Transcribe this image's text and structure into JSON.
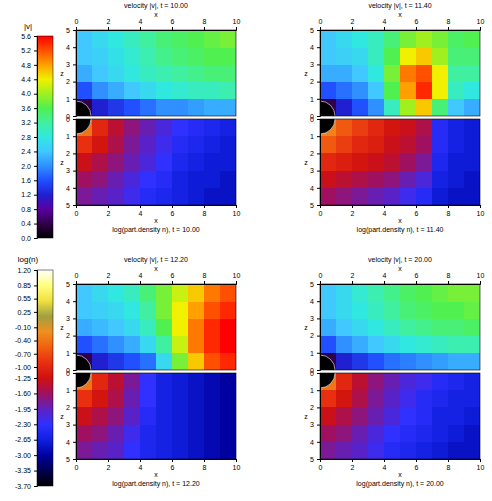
{
  "chart_data": [
    {
      "type": "heatmap",
      "xlabel": "x",
      "ylabel": "z",
      "xlim": [
        0,
        10
      ],
      "ylim": [
        0,
        5
      ],
      "xticks": [
        0,
        2,
        4,
        6,
        8,
        10
      ],
      "yticks": [
        0,
        1,
        2,
        3,
        4,
        5
      ],
      "x_edges": [
        0,
        1,
        2,
        3,
        4,
        5,
        6,
        7,
        8,
        9,
        10
      ],
      "z_edges": [
        0,
        1,
        2,
        3,
        4,
        5
      ],
      "colorbar": {
        "title": "|v|",
        "lim": [
          0,
          5.6
        ],
        "ticks": [
          {
            "value": 0,
            "label": "0.0"
          },
          0.4,
          0.8,
          1.2,
          1.6,
          {
            "value": 2,
            "label": "2.0"
          },
          2.4,
          2.8,
          3.2,
          3.6,
          {
            "value": 4,
            "label": "4.0"
          },
          4.4,
          4.8,
          5.2,
          5.6
        ]
      },
      "panels": [
        {
          "title": "velocity |v|, t = 10.00",
          "cells": [
            [
              0.4,
              1.2,
              1.4,
              1.6,
              1.8,
              2.0,
              2.0,
              2.1,
              2.2,
              2.2
            ],
            [
              1.6,
              2.0,
              2.2,
              2.4,
              2.6,
              2.8,
              2.9,
              3.0,
              3.0,
              3.1
            ],
            [
              2.2,
              2.4,
              2.6,
              2.8,
              3.0,
              3.1,
              3.2,
              3.3,
              3.4,
              3.4
            ],
            [
              2.4,
              2.5,
              2.7,
              2.9,
              3.1,
              3.3,
              3.4,
              3.5,
              3.6,
              3.6
            ],
            [
              2.4,
              2.6,
              2.8,
              3.0,
              3.2,
              3.4,
              3.5,
              3.6,
              3.7,
              3.8
            ]
          ]
        },
        {
          "title": "velocity |v|, t = 11.40",
          "cells": [
            [
              0.4,
              1.2,
              1.6,
              2.0,
              3.0,
              4.0,
              4.6,
              3.4,
              2.4,
              2.2
            ],
            [
              1.6,
              1.8,
              2.0,
              2.4,
              3.6,
              4.8,
              5.4,
              4.4,
              3.0,
              2.8
            ],
            [
              2.2,
              2.2,
              2.4,
              2.8,
              3.8,
              5.0,
              5.2,
              4.4,
              3.2,
              3.2
            ],
            [
              2.4,
              2.5,
              2.6,
              3.0,
              3.6,
              4.4,
              4.6,
              4.0,
              3.4,
              3.4
            ],
            [
              2.4,
              2.6,
              2.8,
              3.0,
              3.4,
              3.8,
              4.0,
              3.8,
              3.5,
              3.6
            ]
          ]
        },
        {
          "title": "velocity |v|, t = 12.20",
          "cells": [
            [
              0.4,
              1.2,
              1.4,
              1.6,
              1.8,
              2.6,
              3.8,
              4.6,
              5.2,
              5.4
            ],
            [
              1.6,
              1.8,
              2.0,
              2.2,
              2.6,
              3.2,
              4.2,
              5.0,
              5.4,
              5.6
            ],
            [
              2.2,
              2.3,
              2.4,
              2.6,
              3.0,
              3.6,
              4.4,
              5.0,
              5.4,
              5.6
            ],
            [
              2.4,
              2.5,
              2.6,
              2.8,
              3.2,
              3.8,
              4.4,
              4.8,
              5.2,
              5.4
            ],
            [
              2.4,
              2.6,
              2.8,
              3.0,
              3.4,
              3.8,
              4.2,
              4.6,
              5.0,
              5.2
            ]
          ]
        },
        {
          "title": "velocity |v|, t = 20.00",
          "cells": [
            [
              0.4,
              1.2,
              1.4,
              1.6,
              1.8,
              1.9,
              2.0,
              2.1,
              2.2,
              2.2
            ],
            [
              1.6,
              2.0,
              2.2,
              2.4,
              2.6,
              2.8,
              2.9,
              3.0,
              3.1,
              3.1
            ],
            [
              2.2,
              2.4,
              2.6,
              2.8,
              3.0,
              3.2,
              3.3,
              3.4,
              3.4,
              3.5
            ],
            [
              2.4,
              2.6,
              2.8,
              3.0,
              3.2,
              3.4,
              3.5,
              3.6,
              3.6,
              3.7
            ],
            [
              2.4,
              2.6,
              2.9,
              3.1,
              3.3,
              3.5,
              3.6,
              3.7,
              3.8,
              3.8
            ]
          ]
        }
      ]
    },
    {
      "type": "heatmap",
      "xlabel": "x",
      "ylabel": "z",
      "xlim": [
        0,
        10
      ],
      "ylim": [
        5,
        0
      ],
      "xticks": [
        0,
        2,
        4,
        6,
        8,
        10
      ],
      "yticks": [
        0,
        1,
        2,
        3,
        4,
        5
      ],
      "x_edges": [
        0,
        1,
        2,
        3,
        4,
        5,
        6,
        7,
        8,
        9,
        10
      ],
      "z_edges": [
        0,
        1,
        2,
        3,
        4,
        5
      ],
      "colorbar": {
        "title": "log(n)",
        "lim": [
          -3.7,
          1.2
        ],
        "ticks": [
          {
            "value": -3.7,
            "label": "-3.70"
          },
          -3.35,
          {
            "value": -3,
            "label": "-3.00"
          },
          -2.65,
          {
            "value": -2.3,
            "label": "-2.30"
          },
          -1.95,
          {
            "value": -1.6,
            "label": "-1.60"
          },
          -1.25,
          {
            "value": -1,
            "label": "-1.00"
          },
          {
            "value": -0.7,
            "label": "-0.70"
          },
          {
            "value": -0.4,
            "label": "-0.40"
          },
          {
            "value": -0.1,
            "label": "-0.10"
          },
          0.25,
          0.55,
          0.85,
          {
            "value": 1.2,
            "label": "1.20"
          }
        ]
      },
      "panels": [
        {
          "title": "log(part.density n), t = 10.00",
          "cells": [
            [
              -0.4,
              -1.0,
              -1.4,
              -1.7,
              -1.9,
              -2.1,
              -2.3,
              -2.4,
              -2.5,
              -2.6
            ],
            [
              -0.9,
              -1.2,
              -1.5,
              -1.8,
              -2.0,
              -2.2,
              -2.4,
              -2.5,
              -2.6,
              -2.7
            ],
            [
              -1.3,
              -1.5,
              -1.7,
              -1.9,
              -2.1,
              -2.3,
              -2.5,
              -2.6,
              -2.7,
              -2.7
            ],
            [
              -1.6,
              -1.7,
              -1.9,
              -2.1,
              -2.3,
              -2.4,
              -2.6,
              -2.7,
              -2.7,
              -2.8
            ],
            [
              -1.8,
              -1.9,
              -2.0,
              -2.2,
              -2.4,
              -2.5,
              -2.6,
              -2.7,
              -2.8,
              -2.8
            ]
          ]
        },
        {
          "title": "log(part.density n), t = 11.40",
          "cells": [
            [
              -0.3,
              -0.6,
              -0.8,
              -1.0,
              -1.2,
              -1.3,
              -1.5,
              -2.4,
              -2.6,
              -2.7
            ],
            [
              -0.6,
              -0.8,
              -1.0,
              -1.1,
              -1.3,
              -1.4,
              -1.6,
              -2.4,
              -2.6,
              -2.7
            ],
            [
              -1.0,
              -1.1,
              -1.2,
              -1.3,
              -1.4,
              -1.6,
              -1.8,
              -2.5,
              -2.7,
              -2.7
            ],
            [
              -1.3,
              -1.4,
              -1.5,
              -1.6,
              -1.7,
              -1.9,
              -2.1,
              -2.6,
              -2.7,
              -2.8
            ],
            [
              -1.6,
              -1.7,
              -1.8,
              -1.9,
              -2.0,
              -2.2,
              -2.4,
              -2.7,
              -2.8,
              -2.8
            ]
          ]
        },
        {
          "title": "log(part.density n), t = 12.20",
          "cells": [
            [
              -0.4,
              -1.0,
              -1.4,
              -1.8,
              -2.3,
              -2.6,
              -2.7,
              -2.8,
              -2.9,
              -3.0
            ],
            [
              -0.9,
              -1.2,
              -1.5,
              -1.9,
              -2.3,
              -2.6,
              -2.7,
              -2.8,
              -2.9,
              -3.0
            ],
            [
              -1.3,
              -1.5,
              -1.7,
              -2.0,
              -2.4,
              -2.6,
              -2.7,
              -2.8,
              -2.9,
              -3.0
            ],
            [
              -1.6,
              -1.7,
              -1.9,
              -2.2,
              -2.5,
              -2.6,
              -2.7,
              -2.8,
              -2.9,
              -3.0
            ],
            [
              -1.8,
              -1.9,
              -2.0,
              -2.3,
              -2.5,
              -2.6,
              -2.7,
              -2.8,
              -2.9,
              -3.0
            ]
          ]
        },
        {
          "title": "log(part.density n), t = 20.00",
          "cells": [
            [
              -0.4,
              -1.0,
              -1.4,
              -1.7,
              -1.9,
              -2.1,
              -2.2,
              -2.4,
              -2.5,
              -2.6
            ],
            [
              -0.9,
              -1.2,
              -1.5,
              -1.8,
              -2.0,
              -2.2,
              -2.4,
              -2.5,
              -2.6,
              -2.6
            ],
            [
              -1.3,
              -1.5,
              -1.7,
              -1.9,
              -2.1,
              -2.3,
              -2.4,
              -2.6,
              -2.6,
              -2.7
            ],
            [
              -1.6,
              -1.7,
              -1.9,
              -2.1,
              -2.3,
              -2.4,
              -2.5,
              -2.6,
              -2.7,
              -2.8
            ],
            [
              -1.8,
              -1.9,
              -2.0,
              -2.2,
              -2.4,
              -2.5,
              -2.6,
              -2.7,
              -2.8,
              -2.8
            ]
          ]
        }
      ]
    }
  ]
}
